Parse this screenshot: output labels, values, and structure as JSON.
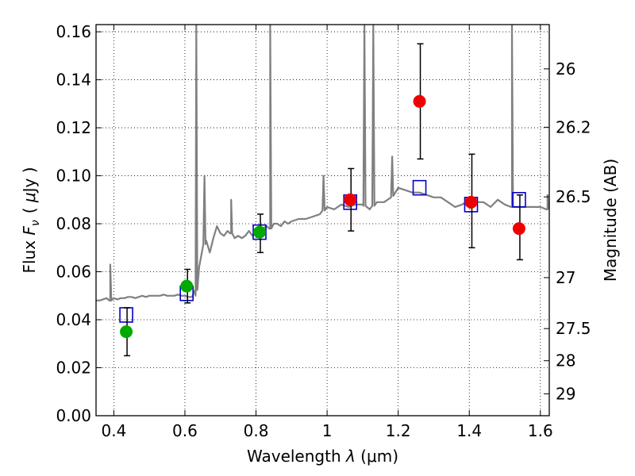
{
  "chart_data": {
    "type": "scatter",
    "xlabel": "Wavelength  λ (μm)",
    "ylabel": "Flux  F_ν  ( μJy )",
    "ylabel_parts": {
      "prefix": "Flux ",
      "symbol": "F",
      "subscript": "ν",
      "unit_open": "( ",
      "unit_mu": "μ",
      "unit_rest": "Jy )"
    },
    "xlabel_parts": {
      "prefix": "Wavelength ",
      "symbol": "λ",
      "unit": " (μm)"
    },
    "y2label": "Magnitude (AB)",
    "xlim": [
      0.35,
      1.625
    ],
    "ylim": [
      0.0,
      0.163
    ],
    "grid": true,
    "x_ticks": [
      0.4,
      0.6,
      0.8,
      1.0,
      1.2,
      1.4,
      1.6
    ],
    "x_tick_labels": [
      "0.4",
      "0.6",
      "0.8",
      "1",
      "1.2",
      "1.4",
      "1.6"
    ],
    "y_ticks": [
      0.0,
      0.02,
      0.04,
      0.06,
      0.08,
      0.1,
      0.12,
      0.14,
      0.16
    ],
    "y_tick_labels": [
      "0.00",
      "0.02",
      "0.04",
      "0.06",
      "0.08",
      "0.10",
      "0.12",
      "0.14",
      "0.16"
    ],
    "y2_ticks": [
      {
        "mag": 26,
        "label": "26"
      },
      {
        "mag": 26.2,
        "label": "26.2"
      },
      {
        "mag": 26.5,
        "label": "26.5"
      },
      {
        "mag": 27,
        "label": "27"
      },
      {
        "mag": 27.5,
        "label": "27.5"
      },
      {
        "mag": 28,
        "label": "28"
      },
      {
        "mag": 29,
        "label": "29"
      }
    ],
    "colors": {
      "spectrum": "#808080",
      "model_box": "#0000cc",
      "obs_green": "#00aa00",
      "obs_red": "#ee0000",
      "error_bar": "#000000"
    },
    "spectrum": {
      "x": [
        0.35,
        0.36,
        0.37,
        0.38,
        0.39,
        0.4,
        0.41,
        0.42,
        0.43,
        0.44,
        0.45,
        0.46,
        0.47,
        0.48,
        0.49,
        0.5,
        0.51,
        0.52,
        0.53,
        0.54,
        0.55,
        0.56,
        0.57,
        0.58,
        0.59,
        0.6,
        0.61,
        0.62,
        0.63,
        0.64,
        0.65,
        0.66,
        0.67,
        0.68,
        0.69,
        0.7,
        0.71,
        0.72,
        0.73,
        0.74,
        0.75,
        0.76,
        0.77,
        0.78,
        0.79,
        0.8,
        0.81,
        0.82,
        0.83,
        0.84,
        0.85,
        0.86,
        0.87,
        0.88,
        0.89,
        0.9,
        0.92,
        0.94,
        0.96,
        0.98,
        1.0,
        1.02,
        1.04,
        1.06,
        1.08,
        1.1,
        1.12,
        1.14,
        1.16,
        1.18,
        1.2,
        1.22,
        1.24,
        1.26,
        1.28,
        1.3,
        1.32,
        1.34,
        1.36,
        1.38,
        1.4,
        1.42,
        1.44,
        1.46,
        1.48,
        1.5,
        1.52,
        1.54,
        1.56,
        1.58,
        1.6,
        1.62
      ],
      "y": [
        0.048,
        0.048,
        0.0485,
        0.049,
        0.048,
        0.049,
        0.0485,
        0.049,
        0.049,
        0.0495,
        0.0495,
        0.049,
        0.0495,
        0.05,
        0.0495,
        0.05,
        0.05,
        0.05,
        0.05,
        0.0505,
        0.05,
        0.05,
        0.05,
        0.0505,
        0.05,
        0.05,
        0.0495,
        0.0495,
        0.05,
        0.062,
        0.07,
        0.073,
        0.068,
        0.074,
        0.079,
        0.076,
        0.075,
        0.077,
        0.076,
        0.074,
        0.075,
        0.074,
        0.075,
        0.077,
        0.075,
        0.076,
        0.077,
        0.078,
        0.079,
        0.078,
        0.08,
        0.08,
        0.079,
        0.081,
        0.08,
        0.081,
        0.082,
        0.082,
        0.083,
        0.084,
        0.087,
        0.086,
        0.088,
        0.087,
        0.088,
        0.088,
        0.086,
        0.089,
        0.089,
        0.091,
        0.095,
        0.094,
        0.093,
        0.093,
        0.092,
        0.091,
        0.091,
        0.089,
        0.087,
        0.088,
        0.09,
        0.089,
        0.089,
        0.087,
        0.09,
        0.088,
        0.087,
        0.087,
        0.087,
        0.087,
        0.087,
        0.086
      ]
    },
    "emission_lines": [
      {
        "x": 0.39,
        "peak": 0.063
      },
      {
        "x": 0.632,
        "peak": 0.163
      },
      {
        "x": 0.655,
        "peak": 0.1
      },
      {
        "x": 0.73,
        "peak": 0.09
      },
      {
        "x": 0.84,
        "peak": 0.163
      },
      {
        "x": 0.99,
        "peak": 0.1
      },
      {
        "x": 1.105,
        "peak": 0.163
      },
      {
        "x": 1.13,
        "peak": 0.163
      },
      {
        "x": 1.183,
        "peak": 0.108
      },
      {
        "x": 1.52,
        "peak": 0.163
      },
      {
        "x": 1.62,
        "peak": 0.092
      }
    ],
    "model_points": {
      "x": [
        0.435,
        0.605,
        0.81,
        1.065,
        1.26,
        1.405,
        1.54
      ],
      "y": [
        0.042,
        0.051,
        0.0765,
        0.089,
        0.095,
        0.088,
        0.09
      ]
    },
    "observed_points": [
      {
        "x": 0.435,
        "y": 0.035,
        "yerr_low": 0.025,
        "yerr_high": 0.045,
        "color": "green"
      },
      {
        "x": 0.605,
        "y": 0.054,
        "yerr_low": 0.047,
        "yerr_high": 0.061,
        "color": "green"
      },
      {
        "x": 0.81,
        "y": 0.0765,
        "yerr_low": 0.068,
        "yerr_high": 0.084,
        "color": "green"
      },
      {
        "x": 1.065,
        "y": 0.09,
        "yerr_low": 0.077,
        "yerr_high": 0.103,
        "color": "red"
      },
      {
        "x": 1.26,
        "y": 0.131,
        "yerr_low": 0.107,
        "yerr_high": 0.155,
        "color": "red"
      },
      {
        "x": 1.405,
        "y": 0.089,
        "yerr_low": 0.07,
        "yerr_high": 0.109,
        "color": "red"
      },
      {
        "x": 1.54,
        "y": 0.078,
        "yerr_low": 0.065,
        "yerr_high": 0.092,
        "color": "red"
      }
    ]
  }
}
